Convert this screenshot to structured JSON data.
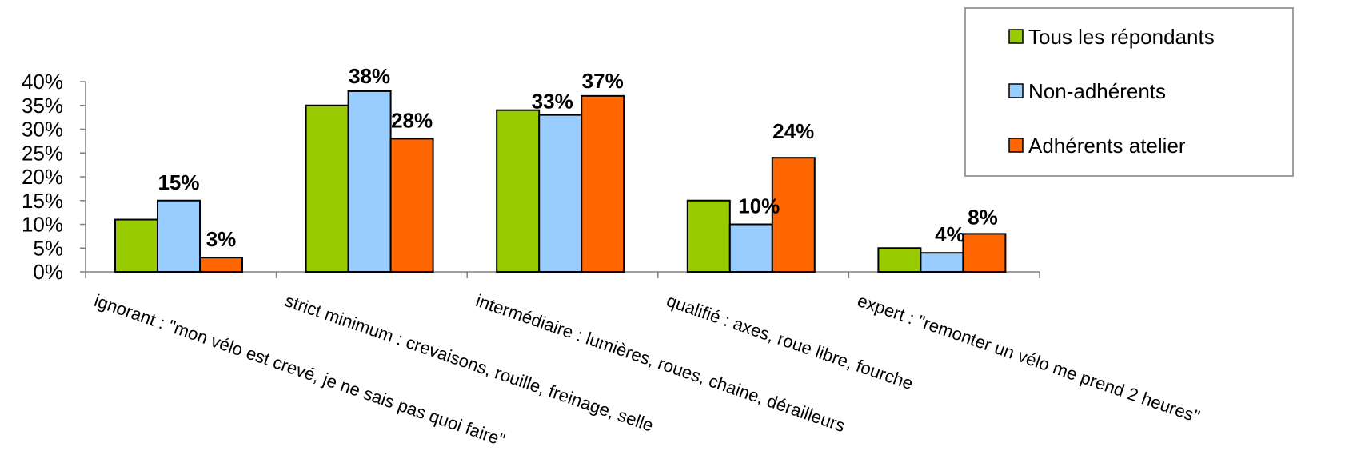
{
  "chart_data": {
    "type": "bar",
    "categories": [
      "ignorant : \"mon vélo est crevé, je ne sais pas quoi faire\"",
      "strict minimum : crevaisons, rouille, freinage, selle",
      "intermédiaire : lumières, roues,  chaine, dérailleurs",
      "qualifié : axes, roue libre, fourche",
      "expert : \"remonter un vélo me prend 2 heures\""
    ],
    "series": [
      {
        "name": "Tous les répondants",
        "color": "#99cc00",
        "values": [
          11,
          35,
          34,
          15,
          5
        ]
      },
      {
        "name": "Non-adhérents",
        "color": "#99ccff",
        "values": [
          15,
          38,
          33,
          10,
          4
        ]
      },
      {
        "name": "Adhérents atelier",
        "color": "#ff6600",
        "values": [
          3,
          28,
          37,
          24,
          8
        ]
      }
    ],
    "data_labels": {
      "Non-adhérents": [
        "15%",
        "38%",
        "33%",
        "10%",
        "4%"
      ],
      "Adhérents atelier": [
        "3%",
        "28%",
        "37%",
        "24%",
        "8%"
      ]
    },
    "y_ticks": [
      "0%",
      "5%",
      "10%",
      "15%",
      "20%",
      "25%",
      "30%",
      "35%",
      "40%"
    ],
    "ylim": [
      0,
      40
    ],
    "title": "",
    "xlabel": "",
    "ylabel": "",
    "grid": false,
    "legend_position": "top-right"
  }
}
